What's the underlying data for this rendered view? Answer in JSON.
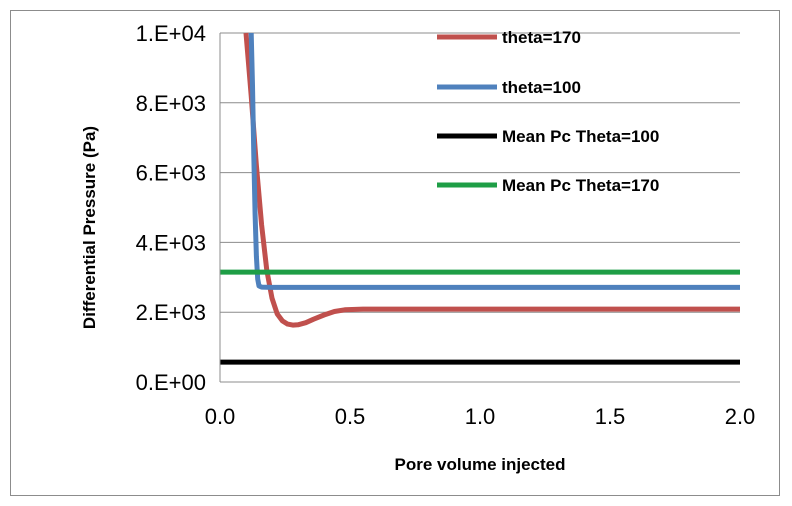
{
  "chart_data": {
    "type": "line",
    "title": "",
    "xlabel": "Pore volume injected",
    "ylabel": "Differential Pressure (Pa)",
    "xlim": [
      0,
      2.0
    ],
    "ylim": [
      0,
      10000
    ],
    "x_ticks": [
      0.0,
      0.5,
      1.0,
      1.5,
      2.0
    ],
    "x_tick_labels": [
      "0.0",
      "0.5",
      "1.0",
      "1.5",
      "2.0"
    ],
    "y_ticks": [
      0,
      2000,
      4000,
      6000,
      8000,
      10000
    ],
    "y_tick_labels": [
      "0.E+00",
      "2.E+03",
      "4.E+03",
      "6.E+03",
      "8.E+03",
      "1.E+04"
    ],
    "grid": "horizontal",
    "legend_position": "top-right",
    "series": [
      {
        "name": "theta=170",
        "color": "#c0504d",
        "x": [
          0.1,
          0.12,
          0.14,
          0.16,
          0.18,
          0.2,
          0.22,
          0.24,
          0.26,
          0.28,
          0.3,
          0.33,
          0.36,
          0.4,
          0.44,
          0.48,
          0.55,
          0.7,
          1.0,
          1.5,
          2.0
        ],
        "y": [
          10000,
          8200,
          6200,
          4500,
          3200,
          2400,
          1950,
          1750,
          1660,
          1630,
          1640,
          1700,
          1800,
          1920,
          2020,
          2070,
          2090,
          2090,
          2090,
          2090,
          2090
        ]
      },
      {
        "name": "theta=100",
        "color": "#4f81bd",
        "x": [
          0.12,
          0.125,
          0.13,
          0.135,
          0.14,
          0.145,
          0.15,
          0.16,
          0.2,
          0.5,
          1.0,
          1.5,
          2.0
        ],
        "y": [
          10000,
          8500,
          6500,
          4800,
          3600,
          2950,
          2750,
          2720,
          2710,
          2710,
          2710,
          2710,
          2710
        ]
      },
      {
        "name": "Mean Pc Theta=100",
        "color": "#000000",
        "x": [
          0.0,
          2.0
        ],
        "y": [
          570,
          570
        ]
      },
      {
        "name": "Mean Pc Theta=170",
        "color": "#1e9e46",
        "x": [
          0.0,
          2.0
        ],
        "y": [
          3150,
          3150
        ]
      }
    ]
  }
}
